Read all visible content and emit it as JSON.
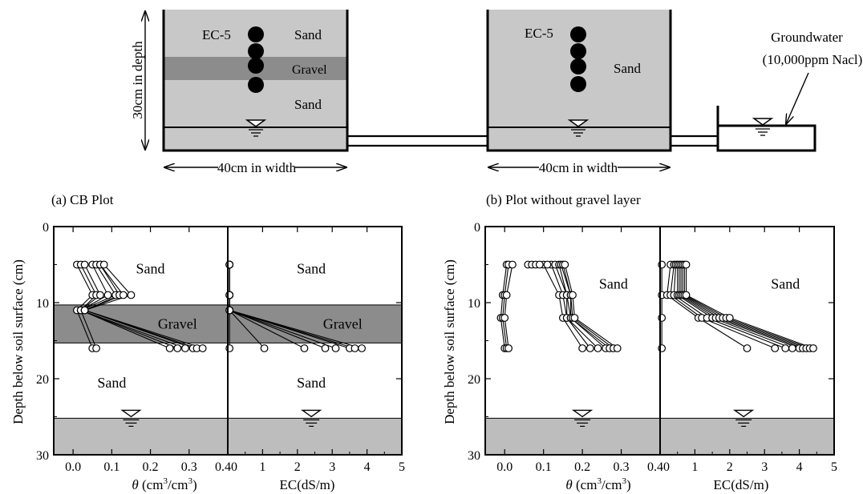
{
  "schematic": {
    "left_box": {
      "sensor_label": "EC-5",
      "layers": [
        "Sand",
        "Gravel",
        "Sand"
      ],
      "height_label": "30cm in depth",
      "width_label": "40cm in width"
    },
    "right_box": {
      "sensor_label": "EC-5",
      "layers": [
        "Sand"
      ],
      "width_label": "40cm in width"
    },
    "reservoir": {
      "label_line1": "Groundwater",
      "label_line2": "(10,000ppm Nacl)"
    }
  },
  "colors": {
    "gravel": "#8c8c8c",
    "sand": "#c8c8c8",
    "groundwater": "#bdbdbd",
    "line": "#000000",
    "marker_fill": "#ffffff"
  },
  "panel_titles": {
    "a": "(a) CB Plot",
    "b": "(b) Plot without gravel layer"
  },
  "y_axis_label": "Depth below soil surface (cm)",
  "theta_xlabel": {
    "prefix": "θ",
    "rest": " (cm",
    "sup1": "3",
    "mid": "/cm",
    "sup2": "3",
    "end": ")"
  },
  "ec_xlabel": "EC(dS/m)",
  "chart_data": [
    {
      "id": "a-theta",
      "type": "line",
      "title": "(a) CB Plot",
      "xlabel": "θ (cm3/cm3)",
      "ylabel": "Depth below soil surface (cm)",
      "xlim": [
        -0.05,
        0.4
      ],
      "ylim": [
        30,
        0
      ],
      "x_ticks": [
        "0.0",
        "0.1",
        "0.2",
        "0.3",
        "0.4"
      ],
      "y_ticks": [
        "0",
        "10",
        "20",
        "30"
      ],
      "depths": [
        5,
        9,
        11,
        16
      ],
      "series": [
        {
          "values": [
            0.01,
            0.05,
            0.01,
            0.05
          ]
        },
        {
          "values": [
            0.02,
            0.06,
            0.02,
            0.06
          ]
        },
        {
          "values": [
            0.03,
            0.07,
            0.02,
            0.25
          ]
        },
        {
          "values": [
            0.05,
            0.09,
            0.02,
            0.27
          ]
        },
        {
          "values": [
            0.06,
            0.11,
            0.02,
            0.29
          ]
        },
        {
          "values": [
            0.07,
            0.12,
            0.03,
            0.31
          ]
        },
        {
          "values": [
            0.07,
            0.13,
            0.03,
            0.32
          ]
        },
        {
          "values": [
            0.08,
            0.15,
            0.03,
            0.335
          ]
        }
      ],
      "zones": [
        {
          "type": "Gravel",
          "from": 10.3,
          "to": 15.3
        },
        {
          "type": "groundwater",
          "from": 25.2,
          "to": 30
        }
      ],
      "annotations": [
        {
          "text": "Sand",
          "x": 0.2,
          "y": 5.5
        },
        {
          "text": "Gravel",
          "x": 0.27,
          "y": 12.8
        },
        {
          "text": "Sand",
          "x": 0.1,
          "y": 20.5
        }
      ],
      "water_table": {
        "x": 0.15,
        "y": 25.2
      }
    },
    {
      "id": "a-ec",
      "type": "line",
      "title": "",
      "xlabel": "EC(dS/m)",
      "xlim": [
        0,
        5
      ],
      "ylim": [
        30,
        0
      ],
      "x_ticks": [
        "0",
        "1",
        "2",
        "3",
        "4",
        "5"
      ],
      "depths": [
        5,
        9,
        11,
        16
      ],
      "series": [
        {
          "values": [
            0.05,
            0.05,
            0.05,
            0.05
          ]
        },
        {
          "values": [
            0.05,
            0.05,
            0.05,
            1.05
          ]
        },
        {
          "values": [
            0.05,
            0.05,
            0.05,
            2.2
          ]
        },
        {
          "values": [
            0.05,
            0.05,
            0.05,
            2.8
          ]
        },
        {
          "values": [
            0.05,
            0.05,
            0.05,
            3.1
          ]
        },
        {
          "values": [
            0.05,
            0.05,
            0.05,
            3.5
          ]
        },
        {
          "values": [
            0.05,
            0.05,
            0.05,
            3.65
          ]
        },
        {
          "values": [
            0.05,
            0.05,
            0.05,
            3.85
          ]
        }
      ],
      "zones": [
        {
          "type": "Gravel",
          "from": 10.3,
          "to": 15.3
        },
        {
          "type": "groundwater",
          "from": 25.2,
          "to": 30
        }
      ],
      "annotations": [
        {
          "text": "Sand",
          "x": 2.4,
          "y": 5.5
        },
        {
          "text": "Gravel",
          "x": 3.3,
          "y": 12.8
        },
        {
          "text": "Sand",
          "x": 2.4,
          "y": 20.5
        }
      ],
      "water_table": {
        "x": 2.4,
        "y": 25.2
      }
    },
    {
      "id": "b-theta",
      "type": "line",
      "title": "(b) Plot without gravel layer",
      "xlabel": "θ (cm3/cm3)",
      "ylabel": "Depth below soil surface (cm)",
      "xlim": [
        -0.05,
        0.4
      ],
      "ylim": [
        30,
        0
      ],
      "x_ticks": [
        "0.0",
        "0.1",
        "0.2",
        "0.3",
        "0.4"
      ],
      "y_ticks": [
        "0",
        "10",
        "20",
        "30"
      ],
      "depths": [
        5,
        9,
        12,
        16
      ],
      "series": [
        {
          "values": [
            0.005,
            -0.005,
            -0.01,
            0.0
          ]
        },
        {
          "values": [
            0.01,
            0.0,
            -0.005,
            0.005
          ]
        },
        {
          "values": [
            0.02,
            0.005,
            0.0,
            0.01
          ]
        },
        {
          "values": [
            0.1,
            0.14,
            0.15,
            0.2
          ]
        },
        {
          "values": [
            0.12,
            0.15,
            0.16,
            0.22
          ]
        },
        {
          "values": [
            0.13,
            0.16,
            0.16,
            0.24
          ]
        },
        {
          "values": [
            0.14,
            0.16,
            0.17,
            0.26
          ]
        },
        {
          "values": [
            0.145,
            0.17,
            0.17,
            0.27
          ]
        },
        {
          "values": [
            0.15,
            0.17,
            0.175,
            0.28
          ]
        },
        {
          "values": [
            0.155,
            0.175,
            0.18,
            0.29
          ]
        }
      ],
      "extra_points": [
        {
          "x": 0.06,
          "y": 5
        },
        {
          "x": 0.07,
          "y": 5
        },
        {
          "x": 0.08,
          "y": 5
        },
        {
          "x": 0.09,
          "y": 5
        },
        {
          "x": 0.11,
          "y": 5
        }
      ],
      "zones": [
        {
          "type": "groundwater",
          "from": 25.2,
          "to": 30
        }
      ],
      "annotations": [
        {
          "text": "Sand",
          "x": 0.28,
          "y": 7.5
        }
      ],
      "water_table": {
        "x": 0.2,
        "y": 25.2
      }
    },
    {
      "id": "b-ec",
      "type": "line",
      "title": "",
      "xlabel": "EC(dS/m)",
      "xlim": [
        0,
        5
      ],
      "ylim": [
        30,
        0
      ],
      "x_ticks": [
        "0",
        "1",
        "2",
        "3",
        "4",
        "5"
      ],
      "depths": [
        5,
        9,
        12,
        16
      ],
      "series": [
        {
          "values": [
            0.05,
            0.05,
            0.05,
            0.05
          ]
        },
        {
          "values": [
            0.3,
            0.2,
            1.1,
            2.5
          ]
        },
        {
          "values": [
            0.4,
            0.3,
            1.2,
            3.3
          ]
        },
        {
          "values": [
            0.45,
            0.4,
            1.35,
            3.6
          ]
        },
        {
          "values": [
            0.5,
            0.5,
            1.5,
            3.8
          ]
        },
        {
          "values": [
            0.55,
            0.55,
            1.6,
            4.0
          ]
        },
        {
          "values": [
            0.6,
            0.6,
            1.7,
            4.1
          ]
        },
        {
          "values": [
            0.65,
            0.65,
            1.8,
            4.2
          ]
        },
        {
          "values": [
            0.7,
            0.7,
            1.9,
            4.3
          ]
        },
        {
          "values": [
            0.75,
            0.75,
            2.0,
            4.4
          ]
        }
      ],
      "zones": [
        {
          "type": "groundwater",
          "from": 25.2,
          "to": 30
        }
      ],
      "annotations": [
        {
          "text": "Sand",
          "x": 3.6,
          "y": 7.5
        }
      ],
      "water_table": {
        "x": 2.4,
        "y": 25.2
      }
    }
  ]
}
